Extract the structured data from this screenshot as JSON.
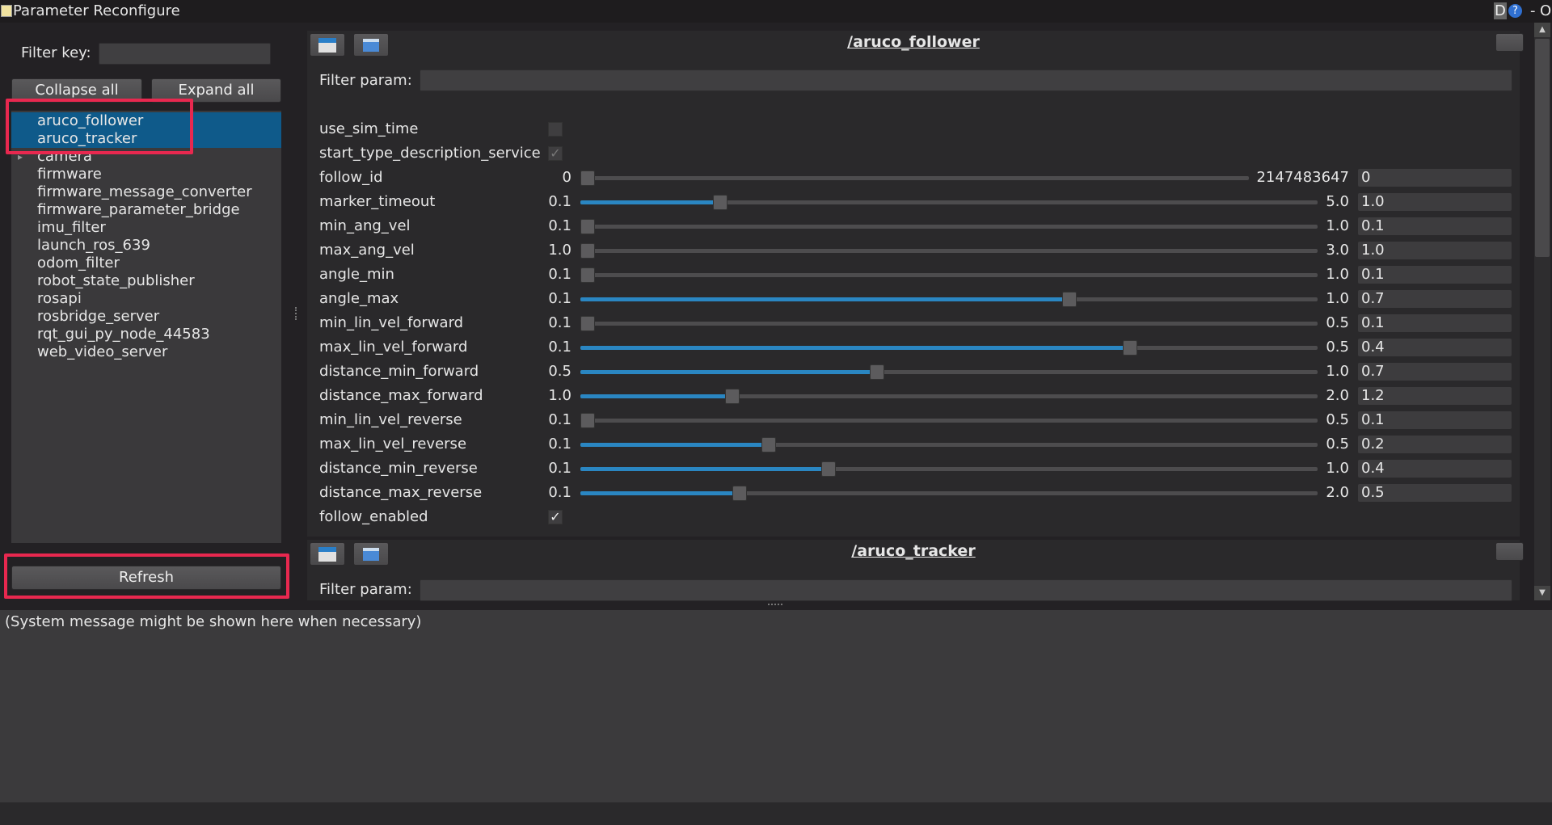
{
  "window": {
    "title": "Parameter Reconfigure",
    "right_controls": "D",
    "help_icon": "?",
    "minimize": "-",
    "close": "O"
  },
  "left": {
    "filter_key_label": "Filter key:",
    "filter_key_value": "",
    "collapse_all": "Collapse all",
    "expand_all": "Expand all",
    "nodes": [
      {
        "label": "aruco_follower",
        "selected": true
      },
      {
        "label": "aruco_tracker",
        "selected": true
      },
      {
        "label": "camera",
        "expandable": true
      },
      {
        "label": "firmware"
      },
      {
        "label": "firmware_message_converter"
      },
      {
        "label": "firmware_parameter_bridge"
      },
      {
        "label": "imu_filter"
      },
      {
        "label": "launch_ros_639"
      },
      {
        "label": "odom_filter"
      },
      {
        "label": "robot_state_publisher"
      },
      {
        "label": "rosapi"
      },
      {
        "label": "rosbridge_server"
      },
      {
        "label": "rqt_gui_py_node_44583"
      },
      {
        "label": "web_video_server"
      }
    ],
    "refresh": "Refresh"
  },
  "groups": [
    {
      "title": "/aruco_follower",
      "filter_label": "Filter param:",
      "filter_value": "",
      "params": [
        {
          "name": "use_sim_time",
          "type": "bool",
          "checked": false
        },
        {
          "name": "start_type_description_service",
          "type": "bool",
          "checked": true,
          "disabled": true
        },
        {
          "name": "follow_id",
          "type": "int",
          "min": "0",
          "max": "2147483647",
          "value": "0"
        },
        {
          "name": "marker_timeout",
          "min": "0.1",
          "max": "5.0",
          "value": "1.0"
        },
        {
          "name": "min_ang_vel",
          "min": "0.1",
          "max": "1.0",
          "value": "0.1"
        },
        {
          "name": "max_ang_vel",
          "min": "1.0",
          "max": "3.0",
          "value": "1.0"
        },
        {
          "name": "angle_min",
          "min": "0.1",
          "max": "1.0",
          "value": "0.1"
        },
        {
          "name": "angle_max",
          "min": "0.1",
          "max": "1.0",
          "value": "0.7"
        },
        {
          "name": "min_lin_vel_forward",
          "min": "0.1",
          "max": "0.5",
          "value": "0.1"
        },
        {
          "name": "max_lin_vel_forward",
          "min": "0.1",
          "max": "0.5",
          "value": "0.4"
        },
        {
          "name": "distance_min_forward",
          "min": "0.5",
          "max": "1.0",
          "value": "0.7"
        },
        {
          "name": "distance_max_forward",
          "min": "1.0",
          "max": "2.0",
          "value": "1.2"
        },
        {
          "name": "min_lin_vel_reverse",
          "min": "0.1",
          "max": "0.5",
          "value": "0.1"
        },
        {
          "name": "max_lin_vel_reverse",
          "min": "0.1",
          "max": "0.5",
          "value": "0.2"
        },
        {
          "name": "distance_min_reverse",
          "min": "0.1",
          "max": "1.0",
          "value": "0.4"
        },
        {
          "name": "distance_max_reverse",
          "min": "0.1",
          "max": "2.0",
          "value": "0.5"
        },
        {
          "name": "follow_enabled",
          "type": "bool",
          "checked": true
        }
      ]
    },
    {
      "title": "/aruco_tracker",
      "filter_label": "Filter param:",
      "filter_value": ""
    }
  ],
  "system_message": "(System message might be shown here when necessary)",
  "colors": {
    "accent": "#2a86c2",
    "selection": "#0f5a8a",
    "highlight_box": "#e8284f"
  }
}
